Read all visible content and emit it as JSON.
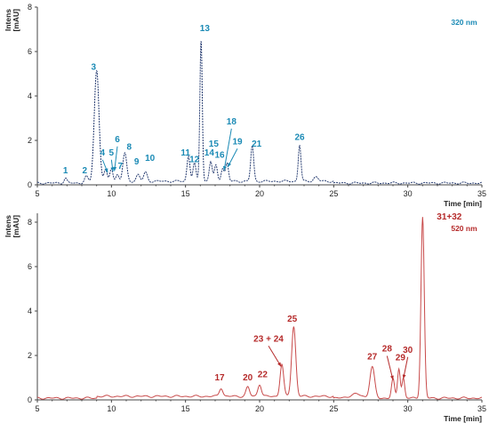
{
  "chart_data": [
    {
      "type": "line",
      "panel": "top",
      "ylabel": [
        "Intens",
        "[mAU]"
      ],
      "xlabel": "Time [min]",
      "xlim": [
        5,
        35
      ],
      "ylim": [
        0,
        8
      ],
      "x_ticks": [
        5,
        10,
        15,
        20,
        25,
        30,
        35
      ],
      "y_ticks": [
        0,
        2,
        4,
        6,
        8
      ],
      "wavelength_label": "320 nm",
      "color": "#1a8ab5",
      "trace_color": "#2a3f73",
      "baseline": 0.08,
      "peaks": [
        {
          "t": 6.9,
          "h": 0.22,
          "w": 0.1
        },
        {
          "t": 8.3,
          "h": 0.3,
          "w": 0.12
        },
        {
          "t": 9.0,
          "h": 5.05,
          "w": 0.16
        },
        {
          "t": 9.6,
          "h": 0.5,
          "w": 0.1
        },
        {
          "t": 10.0,
          "h": 0.6,
          "w": 0.1
        },
        {
          "t": 10.4,
          "h": 0.3,
          "w": 0.1
        },
        {
          "t": 10.9,
          "h": 1.25,
          "w": 0.13
        },
        {
          "t": 11.8,
          "h": 0.3,
          "w": 0.12
        },
        {
          "t": 12.3,
          "h": 0.4,
          "w": 0.12
        },
        {
          "t": 15.2,
          "h": 1.15,
          "w": 0.1
        },
        {
          "t": 15.6,
          "h": 0.8,
          "w": 0.1
        },
        {
          "t": 16.05,
          "h": 6.45,
          "w": 0.08
        },
        {
          "t": 16.7,
          "h": 0.9,
          "w": 0.1
        },
        {
          "t": 17.05,
          "h": 0.7,
          "w": 0.1
        },
        {
          "t": 17.5,
          "h": 0.6,
          "w": 0.1
        },
        {
          "t": 17.8,
          "h": 0.8,
          "w": 0.1
        },
        {
          "t": 19.5,
          "h": 1.6,
          "w": 0.1
        },
        {
          "t": 22.7,
          "h": 1.65,
          "w": 0.09
        },
        {
          "t": 23.8,
          "h": 0.2,
          "w": 0.15
        }
      ],
      "labels": [
        {
          "text": "1",
          "lx": 6.9,
          "ly": 0.45
        },
        {
          "text": "2",
          "lx": 8.2,
          "ly": 0.45
        },
        {
          "text": "3",
          "lx": 8.8,
          "ly": 5.1
        },
        {
          "text": "4",
          "lx": 9.4,
          "ly": 1.25,
          "ax": 9.75,
          "ay": 0.55
        },
        {
          "text": "5",
          "lx": 10.0,
          "ly": 1.25,
          "ax": 10.1,
          "ay": 0.6
        },
        {
          "text": "6",
          "lx": 10.4,
          "ly": 1.85,
          "ax": 10.2,
          "ay": 0.62
        },
        {
          "text": "7",
          "lx": 10.6,
          "ly": 0.65
        },
        {
          "text": "8",
          "lx": 11.2,
          "ly": 1.5
        },
        {
          "text": "9",
          "lx": 11.7,
          "ly": 0.85
        },
        {
          "text": "10",
          "lx": 12.6,
          "ly": 1.0
        },
        {
          "text": "11",
          "lx": 15.0,
          "ly": 1.25
        },
        {
          "text": "12",
          "lx": 15.6,
          "ly": 0.95
        },
        {
          "text": "13",
          "lx": 16.3,
          "ly": 6.85
        },
        {
          "text": "14",
          "lx": 16.6,
          "ly": 1.25
        },
        {
          "text": "15",
          "lx": 16.9,
          "ly": 1.65
        },
        {
          "text": "16",
          "lx": 17.3,
          "ly": 1.15
        },
        {
          "text": "18",
          "lx": 18.1,
          "ly": 2.65,
          "ax": 17.6,
          "ay": 0.65
        },
        {
          "text": "19",
          "lx": 18.5,
          "ly": 1.75,
          "ax": 17.85,
          "ay": 0.8
        },
        {
          "text": "21",
          "lx": 19.8,
          "ly": 1.65
        },
        {
          "text": "26",
          "lx": 22.7,
          "ly": 1.95
        }
      ]
    },
    {
      "type": "line",
      "panel": "bottom",
      "ylabel": [
        "Intens",
        "[mAU]"
      ],
      "xlabel": "Time [min]",
      "xlim": [
        5,
        35
      ],
      "ylim": [
        0,
        8.4
      ],
      "x_ticks": [
        5,
        10,
        15,
        20,
        25,
        30,
        35
      ],
      "y_ticks": [
        0,
        2,
        4,
        6,
        8
      ],
      "wavelength_label": "520 nm",
      "color": "#b52a2a",
      "trace_color": "#c84a4a",
      "baseline": 0.08,
      "peaks": [
        {
          "t": 17.4,
          "h": 0.38,
          "w": 0.12
        },
        {
          "t": 19.2,
          "h": 0.42,
          "w": 0.12
        },
        {
          "t": 20.0,
          "h": 0.55,
          "w": 0.12
        },
        {
          "t": 21.5,
          "h": 1.45,
          "w": 0.12
        },
        {
          "t": 22.3,
          "h": 3.15,
          "w": 0.14
        },
        {
          "t": 26.5,
          "h": 0.18,
          "w": 0.4
        },
        {
          "t": 27.6,
          "h": 1.4,
          "w": 0.16
        },
        {
          "t": 29.0,
          "h": 0.85,
          "w": 0.1
        },
        {
          "t": 29.4,
          "h": 1.35,
          "w": 0.09
        },
        {
          "t": 29.7,
          "h": 0.9,
          "w": 0.09
        },
        {
          "t": 31.0,
          "h": 8.15,
          "w": 0.11
        }
      ],
      "labels": [
        {
          "text": "17",
          "lx": 17.3,
          "ly": 0.8
        },
        {
          "text": "20",
          "lx": 19.2,
          "ly": 0.8
        },
        {
          "text": "22",
          "lx": 20.2,
          "ly": 0.95
        },
        {
          "text": "23 + 24",
          "lx": 20.6,
          "ly": 2.55,
          "ax": 21.45,
          "ay": 1.5
        },
        {
          "text": "25",
          "lx": 22.2,
          "ly": 3.45
        },
        {
          "text": "27",
          "lx": 27.6,
          "ly": 1.75
        },
        {
          "text": "28",
          "lx": 28.6,
          "ly": 2.1,
          "ax": 29.0,
          "ay": 0.9
        },
        {
          "text": "29",
          "lx": 29.5,
          "ly": 1.7
        },
        {
          "text": "30",
          "lx": 30.0,
          "ly": 2.05,
          "ax": 29.7,
          "ay": 0.95
        },
        {
          "text": "31+32",
          "lx": 32.8,
          "ly": 8.05
        }
      ]
    }
  ]
}
